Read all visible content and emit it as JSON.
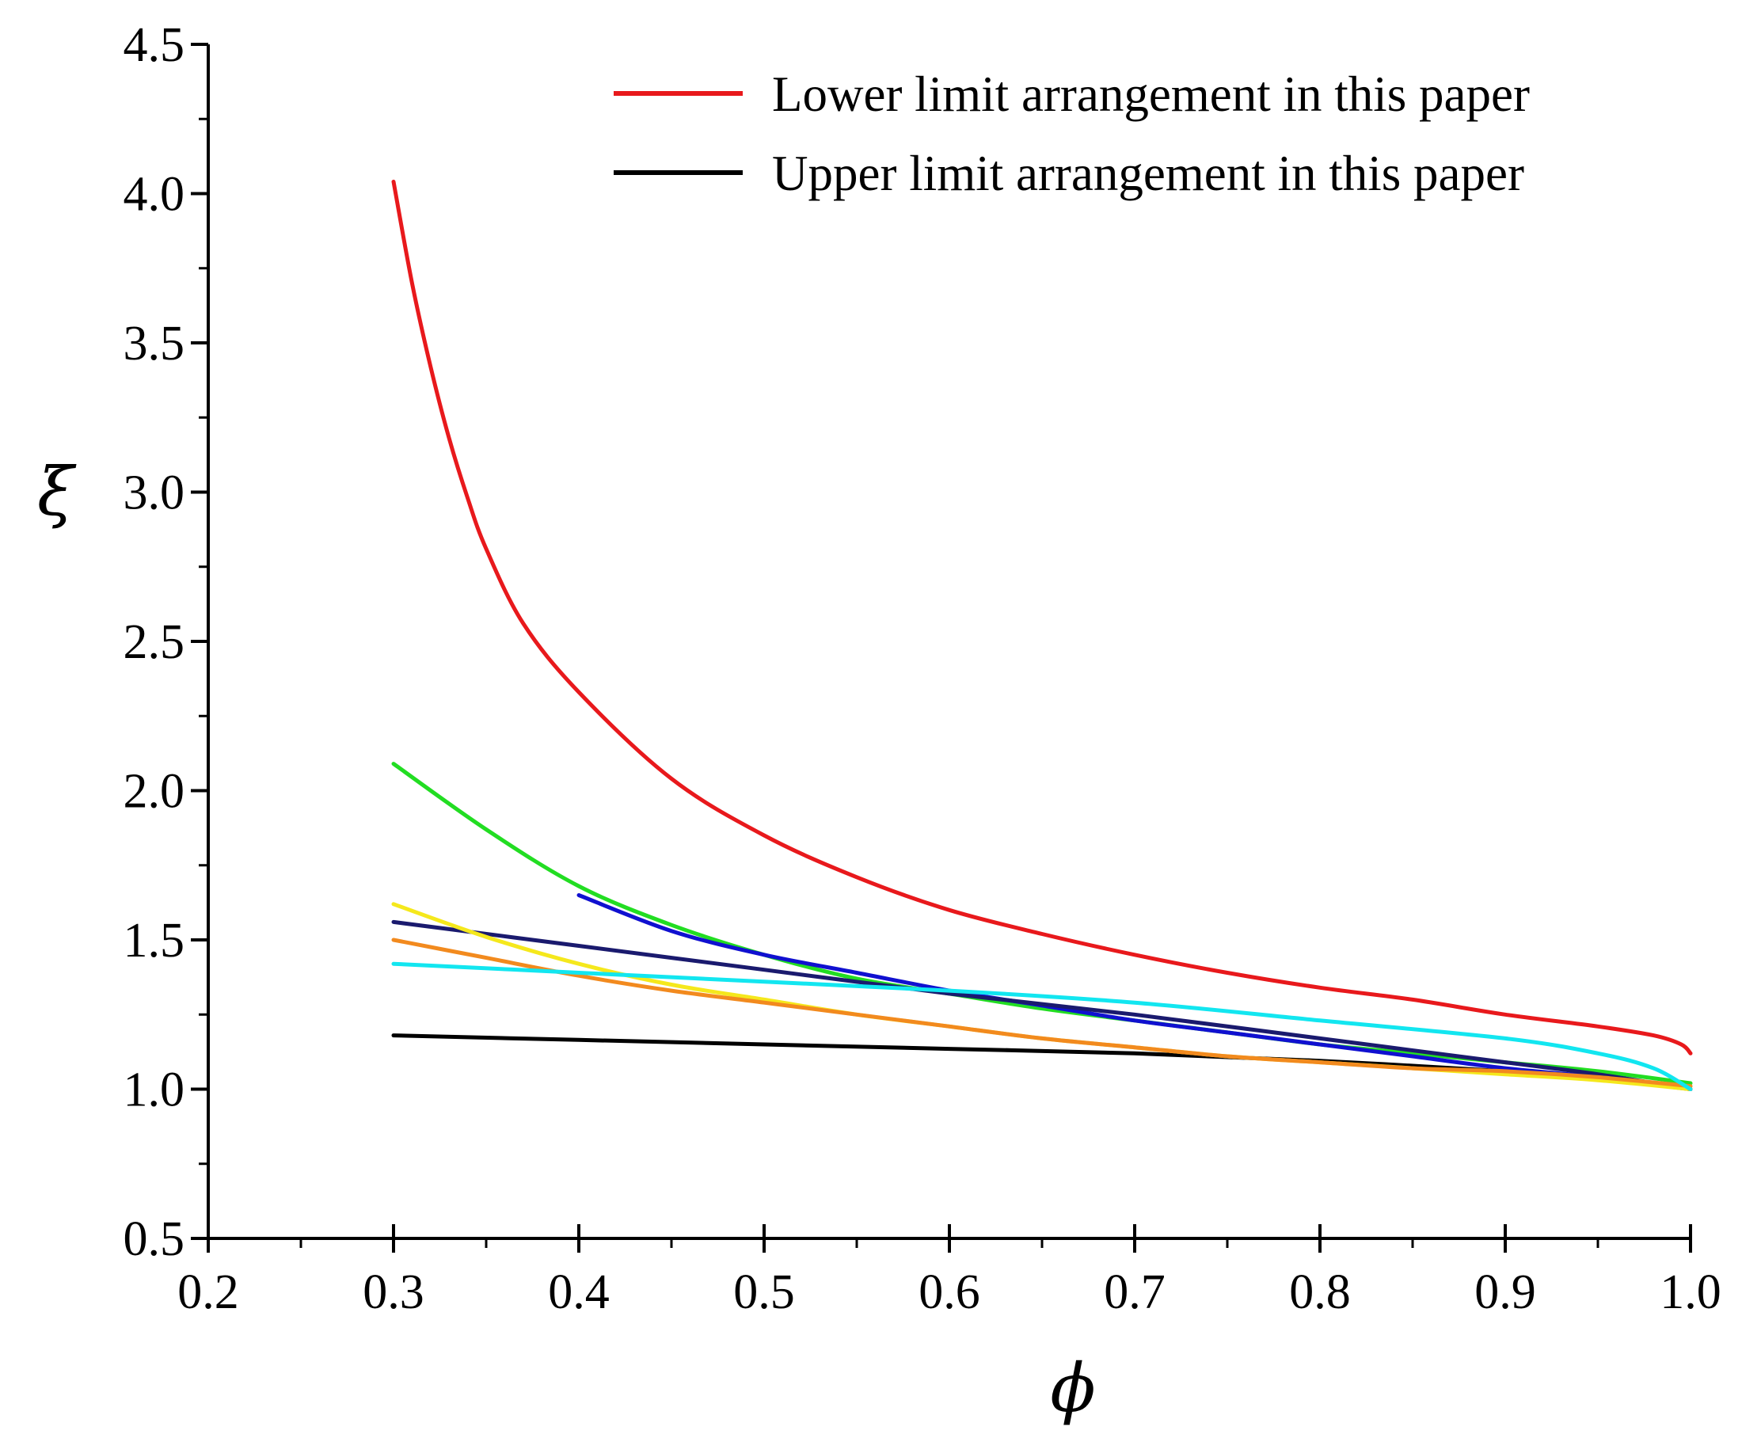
{
  "chart_data": {
    "type": "line",
    "title": "",
    "xlabel": "ϕ",
    "ylabel": "ξ",
    "xlim": [
      0.2,
      1.0
    ],
    "ylim": [
      0.5,
      4.5
    ],
    "x_ticks": [
      "0.2",
      "0.3",
      "0.4",
      "0.5",
      "0.6",
      "0.7",
      "0.8",
      "0.9",
      "1.0"
    ],
    "y_ticks": [
      "0.5",
      "1.0",
      "1.5",
      "2.0",
      "2.5",
      "3.0",
      "3.5",
      "4.0",
      "4.5"
    ],
    "grid": false,
    "legend_position": "top-right",
    "series": [
      {
        "name": "Lower limit arrangement in this paper",
        "color": "#e8191c",
        "in_legend": true,
        "points": [
          [
            0.3,
            4.04
          ],
          [
            0.31,
            3.7
          ],
          [
            0.32,
            3.42
          ],
          [
            0.33,
            3.18
          ],
          [
            0.34,
            2.98
          ],
          [
            0.35,
            2.81
          ],
          [
            0.37,
            2.56
          ],
          [
            0.4,
            2.33
          ],
          [
            0.45,
            2.04
          ],
          [
            0.5,
            1.85
          ],
          [
            0.55,
            1.71
          ],
          [
            0.6,
            1.6
          ],
          [
            0.65,
            1.52
          ],
          [
            0.7,
            1.45
          ],
          [
            0.75,
            1.39
          ],
          [
            0.8,
            1.34
          ],
          [
            0.85,
            1.3
          ],
          [
            0.9,
            1.25
          ],
          [
            0.95,
            1.21
          ],
          [
            0.98,
            1.18
          ],
          [
            0.995,
            1.15
          ],
          [
            1.0,
            1.12
          ]
        ]
      },
      {
        "name": "Upper limit arrangement in this paper",
        "color": "#000000",
        "in_legend": true,
        "points": [
          [
            0.3,
            1.18
          ],
          [
            0.4,
            1.165
          ],
          [
            0.5,
            1.15
          ],
          [
            0.6,
            1.135
          ],
          [
            0.7,
            1.12
          ],
          [
            0.8,
            1.095
          ],
          [
            0.9,
            1.06
          ],
          [
            0.95,
            1.035
          ],
          [
            1.0,
            1.0
          ]
        ]
      },
      {
        "name": "Green curve",
        "color": "#22dd22",
        "in_legend": false,
        "points": [
          [
            0.3,
            2.09
          ],
          [
            0.35,
            1.87
          ],
          [
            0.4,
            1.68
          ],
          [
            0.45,
            1.55
          ],
          [
            0.5,
            1.45
          ],
          [
            0.55,
            1.37
          ],
          [
            0.6,
            1.32
          ],
          [
            0.65,
            1.27
          ],
          [
            0.7,
            1.23
          ],
          [
            0.75,
            1.19
          ],
          [
            0.8,
            1.15
          ],
          [
            0.85,
            1.12
          ],
          [
            0.9,
            1.09
          ],
          [
            0.95,
            1.06
          ],
          [
            1.0,
            1.02
          ]
        ]
      },
      {
        "name": "Blue curve",
        "color": "#1010d0",
        "in_legend": false,
        "points": [
          [
            0.4,
            1.65
          ],
          [
            0.45,
            1.53
          ],
          [
            0.5,
            1.45
          ],
          [
            0.55,
            1.39
          ],
          [
            0.6,
            1.33
          ],
          [
            0.65,
            1.28
          ],
          [
            0.7,
            1.23
          ],
          [
            0.75,
            1.19
          ],
          [
            0.8,
            1.15
          ],
          [
            0.85,
            1.11
          ],
          [
            0.9,
            1.07
          ],
          [
            0.95,
            1.04
          ],
          [
            1.0,
            1.0
          ]
        ]
      },
      {
        "name": "Navy curve",
        "color": "#1a1a6e",
        "in_legend": false,
        "points": [
          [
            0.3,
            1.56
          ],
          [
            0.4,
            1.48
          ],
          [
            0.5,
            1.4
          ],
          [
            0.6,
            1.32
          ],
          [
            0.7,
            1.25
          ],
          [
            0.8,
            1.17
          ],
          [
            0.9,
            1.09
          ],
          [
            0.95,
            1.05
          ],
          [
            1.0,
            1.0
          ]
        ]
      },
      {
        "name": "Yellow curve",
        "color": "#f5e81c",
        "in_legend": false,
        "points": [
          [
            0.3,
            1.62
          ],
          [
            0.35,
            1.51
          ],
          [
            0.4,
            1.42
          ],
          [
            0.45,
            1.35
          ],
          [
            0.5,
            1.3
          ],
          [
            0.55,
            1.25
          ],
          [
            0.6,
            1.21
          ],
          [
            0.65,
            1.17
          ],
          [
            0.7,
            1.14
          ],
          [
            0.75,
            1.11
          ],
          [
            0.8,
            1.09
          ],
          [
            0.85,
            1.07
          ],
          [
            0.9,
            1.05
          ],
          [
            0.95,
            1.03
          ],
          [
            1.0,
            1.0
          ]
        ]
      },
      {
        "name": "Orange curve",
        "color": "#f28a1e",
        "in_legend": false,
        "points": [
          [
            0.3,
            1.5
          ],
          [
            0.35,
            1.44
          ],
          [
            0.4,
            1.38
          ],
          [
            0.45,
            1.33
          ],
          [
            0.5,
            1.29
          ],
          [
            0.55,
            1.25
          ],
          [
            0.6,
            1.21
          ],
          [
            0.65,
            1.17
          ],
          [
            0.7,
            1.14
          ],
          [
            0.75,
            1.11
          ],
          [
            0.8,
            1.09
          ],
          [
            0.85,
            1.07
          ],
          [
            0.9,
            1.06
          ],
          [
            0.95,
            1.04
          ],
          [
            1.0,
            1.01
          ]
        ]
      },
      {
        "name": "Cyan curve",
        "color": "#12e6f0",
        "in_legend": false,
        "points": [
          [
            0.3,
            1.42
          ],
          [
            0.4,
            1.39
          ],
          [
            0.5,
            1.36
          ],
          [
            0.6,
            1.33
          ],
          [
            0.7,
            1.29
          ],
          [
            0.8,
            1.23
          ],
          [
            0.9,
            1.17
          ],
          [
            0.95,
            1.12
          ],
          [
            0.98,
            1.07
          ],
          [
            1.0,
            1.0
          ]
        ]
      }
    ]
  }
}
